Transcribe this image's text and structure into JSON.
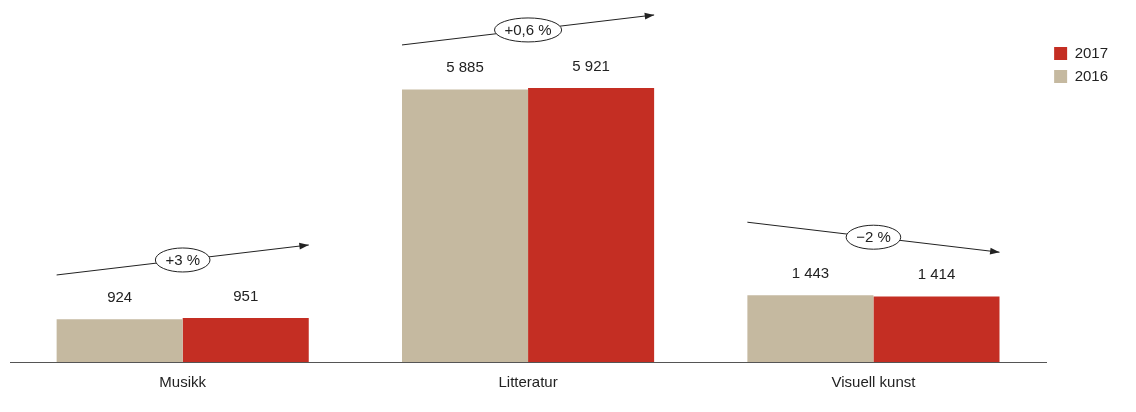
{
  "chart_data": {
    "type": "bar",
    "categories": [
      "Musikk",
      "Litteratur",
      "Visuell kunst"
    ],
    "series": [
      {
        "name": "2016",
        "color": "#c5b9a0",
        "values": [
          924,
          5885,
          1443
        ]
      },
      {
        "name": "2017",
        "color": "#c42e23",
        "values": [
          951,
          5921,
          1414
        ]
      }
    ],
    "data_labels": true,
    "annotations": [
      "+3 %",
      "+0,6 %",
      "−2 %"
    ],
    "legend": "top right",
    "grid": false
  }
}
